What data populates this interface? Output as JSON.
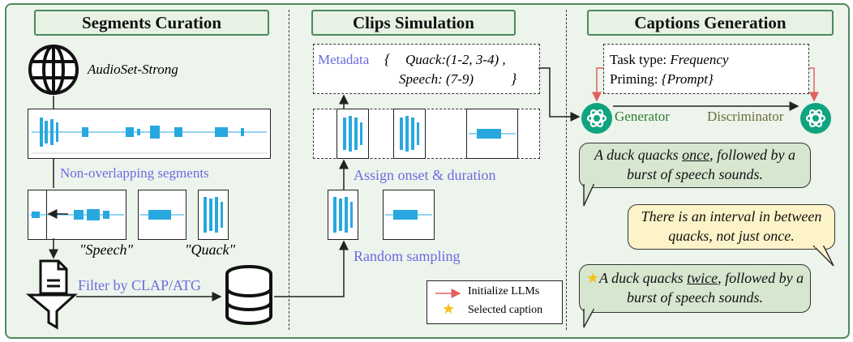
{
  "panels": {
    "segments": "Segments Curation",
    "clips": "Clips Simulation",
    "captions": "Captions Generation"
  },
  "segments": {
    "source": "AudioSet-Strong",
    "non_overlap": "Non-overlapping segments",
    "speech_label": "\"Speech\"",
    "quack_label": "\"Quack\"",
    "filter": "Filter by CLAP/ATG"
  },
  "clips": {
    "metadata_label": "Metadata",
    "brace_open": "{",
    "brace_close": "}",
    "quack": "Quack:(1-2, 3-4) ,",
    "speech": "Speech: (7-9)",
    "assign": "Assign onset & duration",
    "random": "Random sampling"
  },
  "captions": {
    "task_label": "Task type:",
    "task_value": "Frequency",
    "priming_label": "Priming:",
    "priming_value": "{Prompt}",
    "generator": "Generator",
    "discriminator": "Discriminator",
    "caption1_pre": "A duck quacks ",
    "caption1_em": "once",
    "caption1_post": ", followed by a burst of speech sounds.",
    "feedback": "There is an interval in between quacks, not just once.",
    "caption2_pre": "A duck quacks ",
    "caption2_em": "twice",
    "caption2_post": ", followed by a burst of speech sounds."
  },
  "legend": {
    "init": "Initialize LLMs",
    "selected": "Selected caption"
  },
  "colors": {
    "frame_border": "#4f8a5b",
    "frame_bg": "#edf4ec",
    "accent_blue": "#6b6be0",
    "wave_blue": "#29a8e0",
    "openai_green": "#10a37f",
    "arrow_red": "#e06060",
    "generator_green": "#2e7d32",
    "discriminator_olive": "#6b6b3a"
  },
  "icons": [
    "globe-icon",
    "document-icon",
    "funnel-icon",
    "database-icon",
    "openai-icon",
    "star-icon"
  ]
}
